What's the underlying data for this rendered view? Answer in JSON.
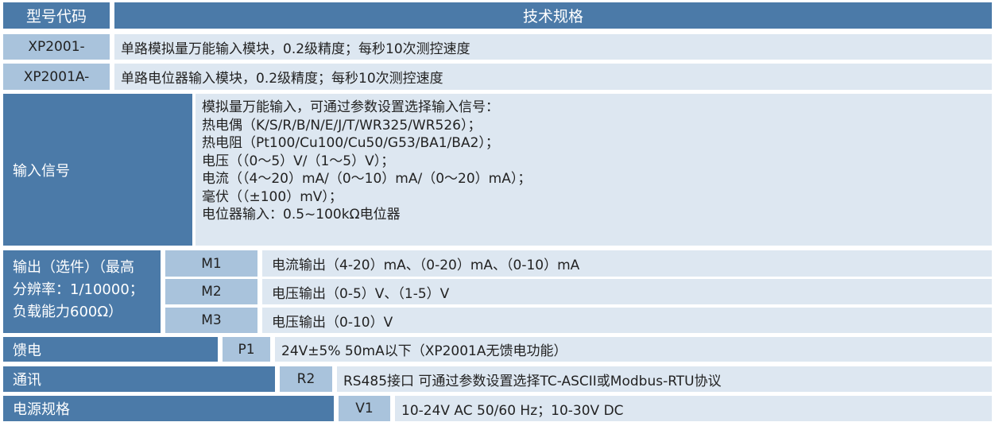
{
  "header": {
    "model_code": "型号代码",
    "spec": "技术规格"
  },
  "models": [
    {
      "code": "XP2001-",
      "desc": "单路模拟量万能输入模块，0.2级精度；每秒10次测控速度"
    },
    {
      "code": "XP2001A-",
      "desc": "单路电位器输入模块，0.2级精度；每秒10次测控速度"
    }
  ],
  "input": {
    "label": "输入信号",
    "lines": [
      "模拟量万能输入，可通过参数设置选择输入信号：",
      "热电偶（K/S/R/B/N/E/J/T/WR325/WR526）；",
      "热电阻（Pt100/Cu100/Cu50/G53/BA1/BA2）；",
      "电压（（0～5）V/（1～5）V）；",
      "电流（（4～20）mA/（0～10）mA/（0～20）mA）；",
      "毫伏（（±100）mV）；",
      "电位器输入：0.5~100kΩ电位器"
    ]
  },
  "output": {
    "label_lines": [
      "输出（选件）（最高",
      "分辨率：1/10000；",
      "负载能力600Ω）"
    ],
    "options": [
      {
        "code": "M1",
        "desc": "电流输出（4-20）mA、（0-20）mA、（0-10）mA"
      },
      {
        "code": "M2",
        "desc": "电压输出（0-5）V、（1-5）V"
      },
      {
        "code": "M3",
        "desc": "电压输出（0-10）V"
      }
    ]
  },
  "feed": {
    "label": "馈电",
    "code": "P1",
    "desc": "24V±5%  50mA以下（XP2001A无馈电功能）"
  },
  "comm": {
    "label": "通讯",
    "code": "R2",
    "desc": "RS485接口 可通过参数设置选择TC-ASCII或Modbus-RTU协议"
  },
  "power": {
    "label": "电源规格",
    "code": "V1",
    "desc": "10-24V AC 50/60 Hz；10-30V DC"
  }
}
